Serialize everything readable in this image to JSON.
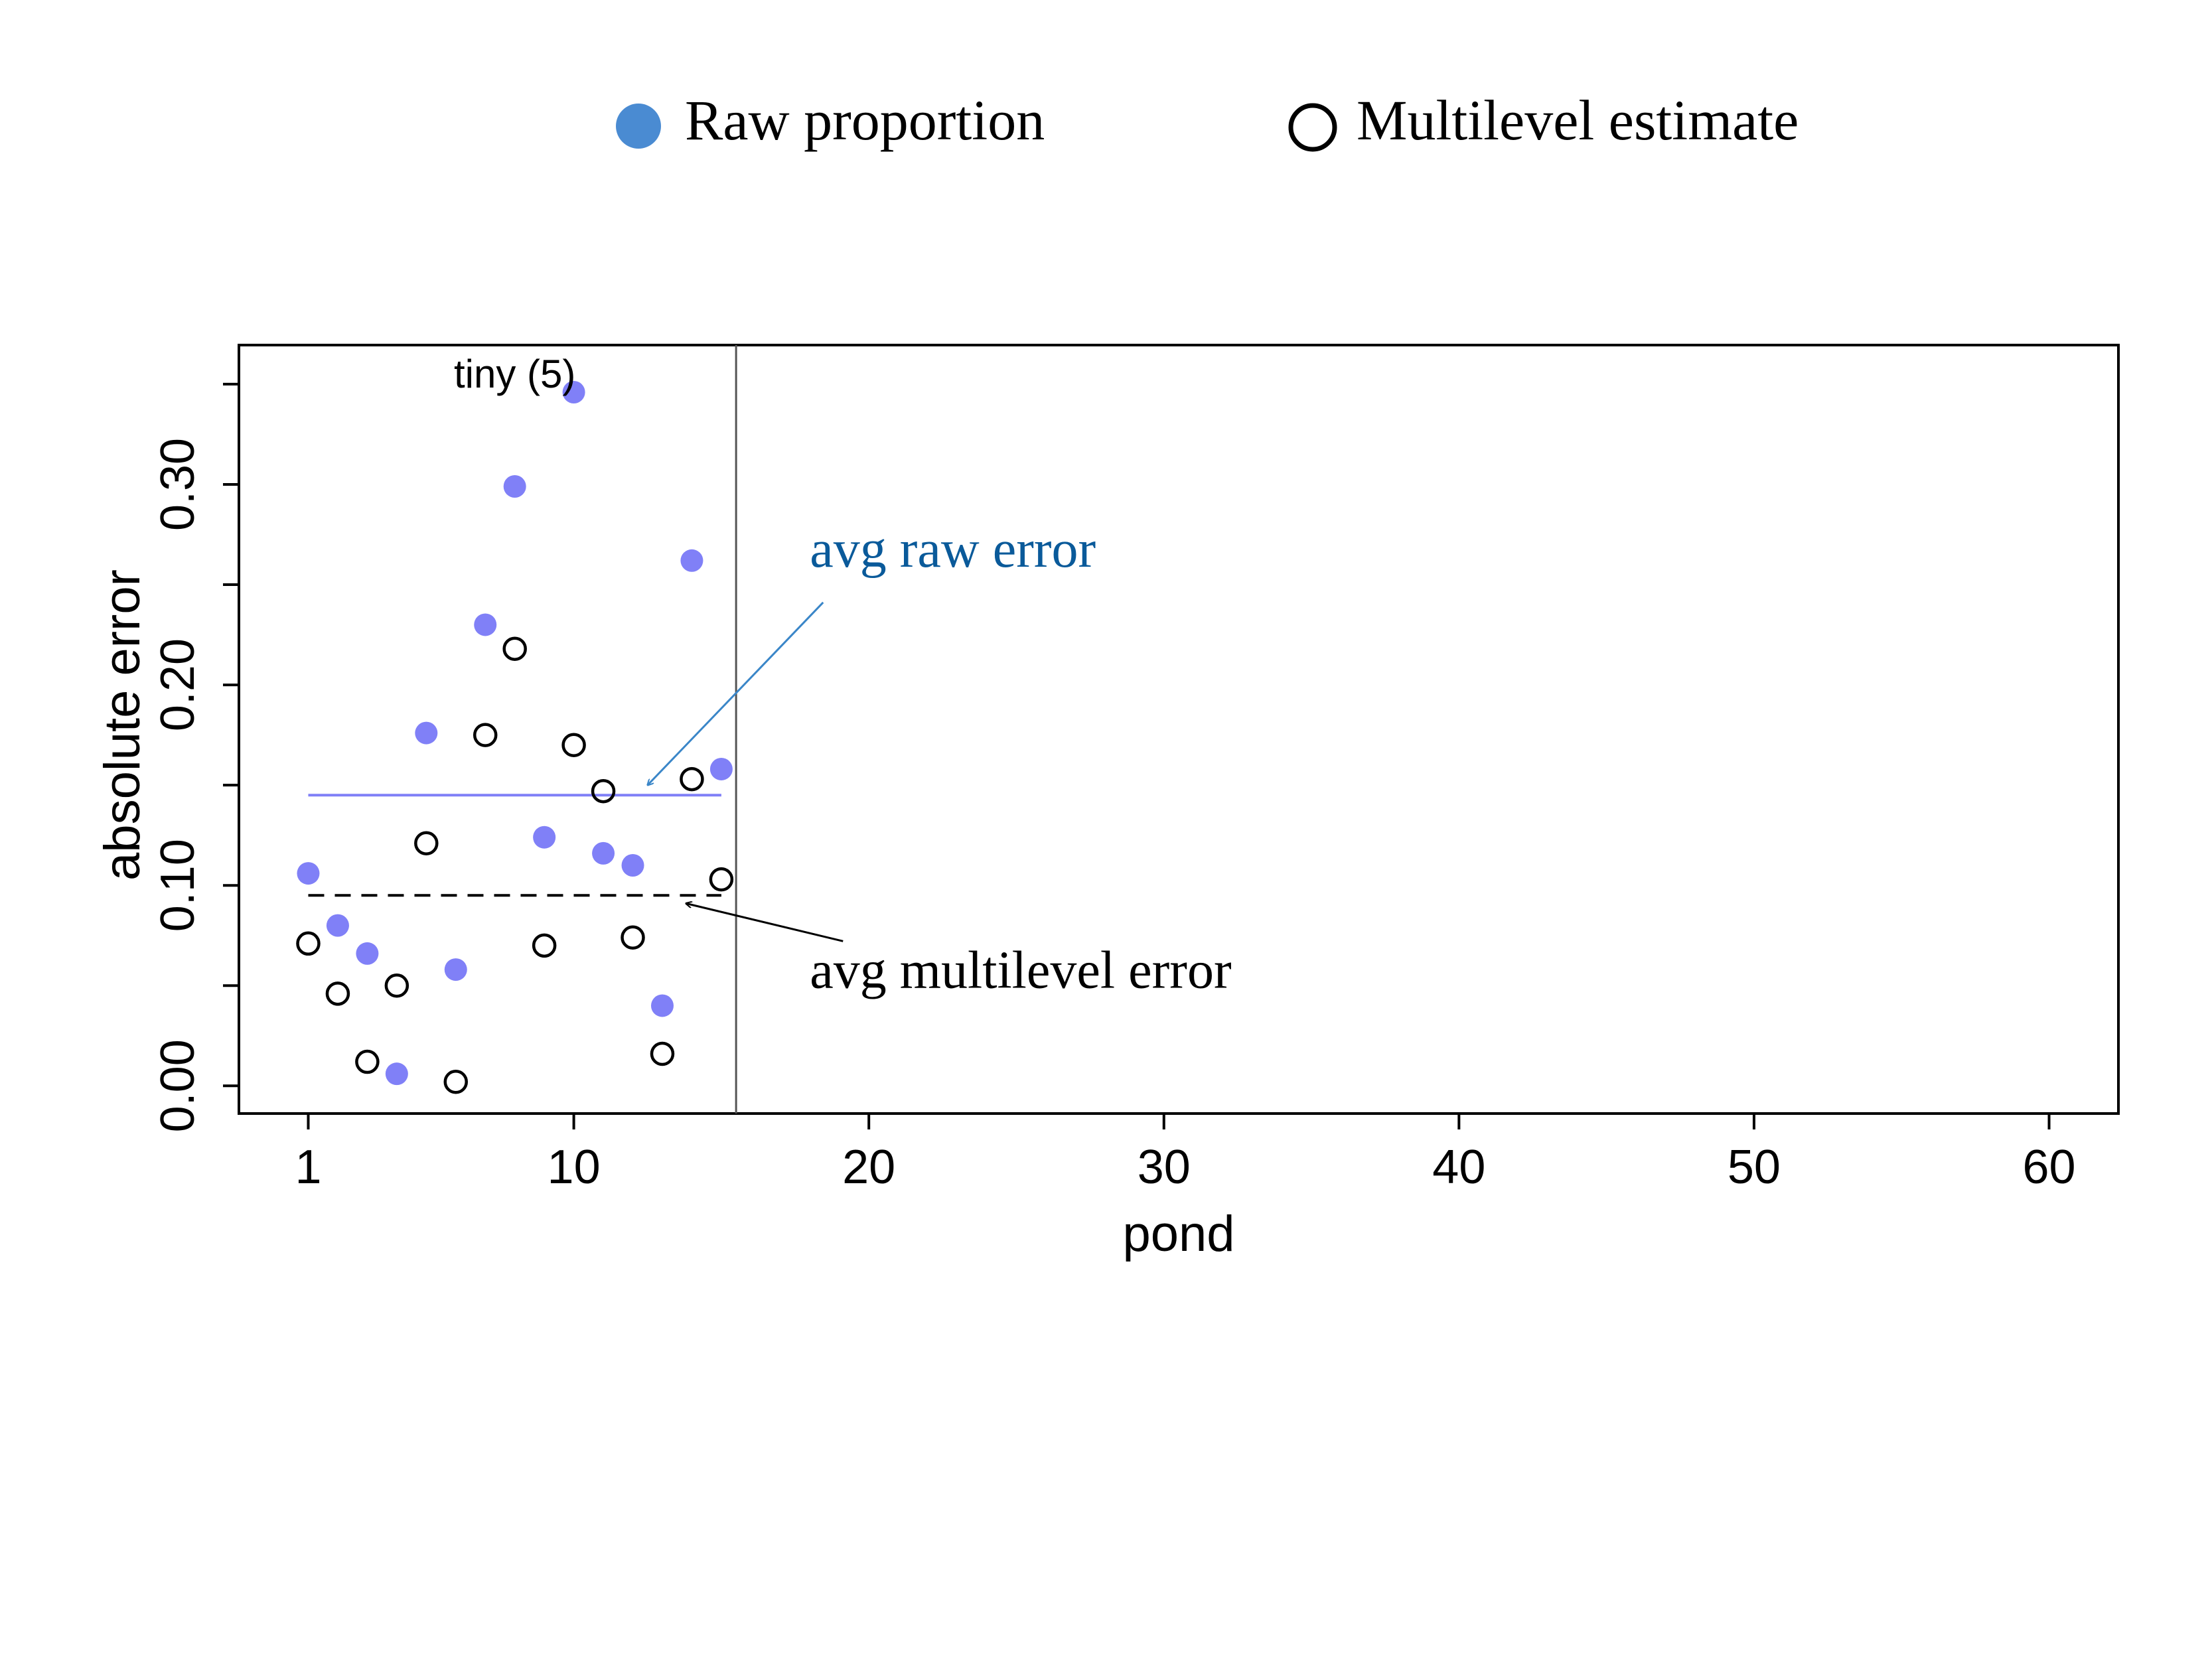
{
  "chart_data": {
    "type": "scatter",
    "xlabel": "pond",
    "ylabel": "absolute error",
    "xlim": [
      -1.35,
      62.35
    ],
    "ylim": [
      -0.0138,
      0.3695
    ],
    "x_ticks": [
      1,
      10,
      20,
      30,
      40,
      50,
      60
    ],
    "x_tick_labels": [
      "1",
      "10",
      "20",
      "30",
      "40",
      "50",
      "60"
    ],
    "y_ticks": [
      0.0,
      0.1,
      0.2,
      0.3
    ],
    "y_tick_labels": [
      "0.00",
      "0.10",
      "0.20",
      "0.30"
    ],
    "grid": false,
    "legend_position": "top-center",
    "legend": [
      {
        "label": "Raw proportion",
        "marker": "filled-circle",
        "color": "#4a8bd2"
      },
      {
        "label": "Multilevel estimate",
        "marker": "open-circle",
        "color": "#000000"
      }
    ],
    "series": [
      {
        "name": "Raw proportion",
        "marker": "filled-circle",
        "color": "#8080f7",
        "x": [
          1,
          2,
          3,
          4,
          5,
          6,
          7,
          8,
          9,
          10,
          11,
          12,
          13,
          14,
          15
        ],
        "y": [
          0.106,
          0.08,
          0.066,
          0.006,
          0.176,
          0.058,
          0.23,
          0.299,
          0.124,
          0.346,
          0.116,
          0.11,
          0.04,
          0.262,
          0.158
        ]
      },
      {
        "name": "Multilevel estimate",
        "marker": "open-circle",
        "color": "#000000",
        "x": [
          1,
          2,
          3,
          4,
          5,
          6,
          7,
          8,
          9,
          10,
          11,
          12,
          13,
          14,
          15
        ],
        "y": [
          0.071,
          0.046,
          0.012,
          0.05,
          0.121,
          0.002,
          0.175,
          0.218,
          0.07,
          0.17,
          0.147,
          0.074,
          0.016,
          0.153,
          0.103
        ]
      }
    ],
    "reference_lines": [
      {
        "label": "avg raw error",
        "y": 0.145,
        "x_from": 1,
        "x_to": 15,
        "style": "solid",
        "color": "#8080f7"
      },
      {
        "label": "avg multilevel error",
        "y": 0.095,
        "x_from": 1,
        "x_to": 15,
        "style": "dashed",
        "color": "#000000"
      }
    ],
    "divider_x": 15.5,
    "annotations": [
      {
        "text": "tiny (5)",
        "x": 8,
        "y": 0.355
      },
      {
        "text": "avg raw error",
        "color": "#0a5a9a",
        "x": 18.0,
        "y": 0.259,
        "arrow_to": {
          "x": 12.5,
          "y": 0.15
        }
      },
      {
        "text": "avg multilevel error",
        "color": "#000000",
        "x": 18.0,
        "y": 0.049,
        "arrow_to": {
          "x": 13.8,
          "y": 0.091
        }
      }
    ]
  }
}
